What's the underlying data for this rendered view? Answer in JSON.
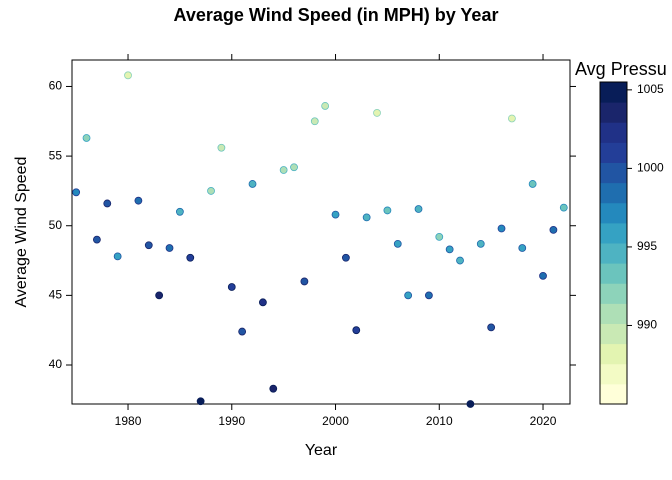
{
  "chart_data": {
    "type": "scatter",
    "title": "Average Wind Speed (in MPH) by Year",
    "x_label": "Year",
    "y_label": "Average Wind Speed",
    "x": [
      1975,
      1976,
      1977,
      1978,
      1979,
      1980,
      1981,
      1982,
      1983,
      1984,
      1985,
      1986,
      1987,
      1988,
      1989,
      1990,
      1991,
      1992,
      1993,
      1994,
      1995,
      1996,
      1997,
      1998,
      1999,
      2000,
      2001,
      2002,
      2003,
      2004,
      2005,
      2006,
      2007,
      2008,
      2009,
      2010,
      2011,
      2012,
      2013,
      2014,
      2015,
      2016,
      2017,
      2018,
      2019,
      2020,
      2021,
      2022
    ],
    "values": [
      52.4,
      56.3,
      49.0,
      51.6,
      47.8,
      60.8,
      51.8,
      48.6,
      45.0,
      48.4,
      51.0,
      47.7,
      37.4,
      52.5,
      55.6,
      45.6,
      42.4,
      53.0,
      44.5,
      38.3,
      54.0,
      54.2,
      46.0,
      57.5,
      58.6,
      50.8,
      47.7,
      42.5,
      50.6,
      58.1,
      51.1,
      48.7,
      45.0,
      51.2,
      45.0,
      49.2,
      48.3,
      47.5,
      37.2,
      48.7,
      42.7,
      49.8,
      57.7,
      48.4,
      53.0,
      46.4,
      49.7,
      51.3
    ],
    "z": [
      997,
      992,
      1000,
      1000,
      996,
      988,
      998,
      1000,
      1003,
      999,
      995,
      1001,
      1005,
      991,
      990,
      1001,
      1000,
      994,
      1002,
      1004,
      991,
      991,
      1000,
      989,
      989,
      996,
      1000,
      1001,
      995,
      988,
      993,
      996,
      996,
      994,
      998,
      992,
      996,
      995,
      1005,
      995,
      1000,
      997,
      988,
      996,
      993,
      999,
      998,
      993
    ],
    "xlim": [
      1974.6,
      2022.6
    ],
    "xticks": [
      1980,
      1990,
      2000,
      2010,
      2020
    ],
    "ylim": [
      37.2,
      61.9
    ],
    "yticks": [
      40,
      45,
      50,
      55,
      60
    ],
    "colorbar": {
      "title": "Avg Pressu",
      "lim": [
        985,
        1005.5
      ],
      "ticks": [
        990,
        995,
        1000,
        1005
      ],
      "colors": [
        "#ffffd9",
        "#f3fbc5",
        "#e3f4b1",
        "#c9e9b4",
        "#aedfb6",
        "#8dd3ba",
        "#6bc4bd",
        "#4eb3c2",
        "#35a2c3",
        "#2489bd",
        "#1f6eaf",
        "#2155a3",
        "#233e98",
        "#203187",
        "#1a256b",
        "#081d58"
      ]
    }
  }
}
